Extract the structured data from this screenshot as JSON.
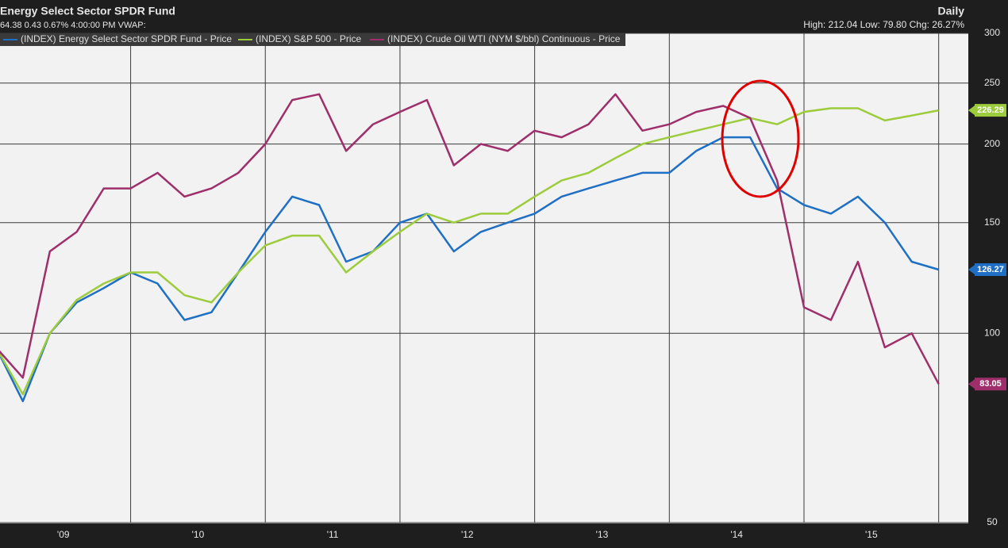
{
  "chart_data": {
    "type": "line",
    "title": "Energy Select Sector SPDR Fund",
    "subtitle": "64.38 0.43 0.67% 4:00:00 PM VWAP:",
    "period": "Daily",
    "stats": "High: 212.04 Low: 79.80 Chg: 26.27%",
    "log_scale": true,
    "grid": true,
    "xlim": [
      2009.03,
      2016.22
    ],
    "ylim": [
      50,
      300
    ],
    "yticks": [
      50,
      100,
      150,
      200,
      250,
      300
    ],
    "xticks": [
      {
        "value": 2009,
        "label": "'09"
      },
      {
        "value": 2010,
        "label": "'10"
      },
      {
        "value": 2011,
        "label": "'11"
      },
      {
        "value": 2012,
        "label": "'12"
      },
      {
        "value": 2013,
        "label": "'13"
      },
      {
        "value": 2014,
        "label": "'14"
      },
      {
        "value": 2015,
        "label": "'15"
      }
    ],
    "x": [
      2009.0,
      2009.2,
      2009.4,
      2009.6,
      2009.8,
      2010.0,
      2010.2,
      2010.4,
      2010.6,
      2010.8,
      2011.0,
      2011.2,
      2011.4,
      2011.6,
      2011.8,
      2012.0,
      2012.2,
      2012.4,
      2012.6,
      2012.8,
      2013.0,
      2013.2,
      2013.4,
      2013.6,
      2013.8,
      2014.0,
      2014.2,
      2014.4,
      2014.6,
      2014.8,
      2015.0,
      2015.2,
      2015.4,
      2015.6,
      2015.8,
      2016.0
    ],
    "series": [
      {
        "name": "(INDEX) Energy Select Sector SPDR Fund - Price",
        "color": "#1f6fc4",
        "values": [
          95,
          78,
          100,
          112,
          118,
          125,
          120,
          105,
          108,
          125,
          145,
          165,
          160,
          130,
          135,
          150,
          155,
          135,
          145,
          150,
          155,
          165,
          170,
          175,
          180,
          180,
          195,
          205,
          205,
          170,
          160,
          155,
          165,
          150,
          130,
          126.27
        ]
      },
      {
        "name": "(INDEX) S&P 500 - Price",
        "color": "#9ccc3c",
        "values": [
          95,
          80,
          100,
          113,
          120,
          125,
          125,
          115,
          112,
          125,
          138,
          143,
          143,
          125,
          135,
          145,
          155,
          150,
          155,
          155,
          165,
          175,
          180,
          190,
          200,
          205,
          210,
          215,
          220,
          215,
          225,
          228,
          228,
          218,
          222,
          226.29
        ]
      },
      {
        "name": "(INDEX) Crude Oil WTI (NYM $/bbl) Continuous - Price",
        "color": "#9e2f6a",
        "values": [
          95,
          85,
          135,
          145,
          170,
          170,
          180,
          165,
          170,
          180,
          200,
          235,
          240,
          195,
          215,
          225,
          235,
          185,
          200,
          195,
          210,
          205,
          215,
          240,
          210,
          215,
          225,
          230,
          220,
          175,
          110,
          105,
          130,
          95,
          100,
          83.05
        ]
      }
    ]
  }
}
